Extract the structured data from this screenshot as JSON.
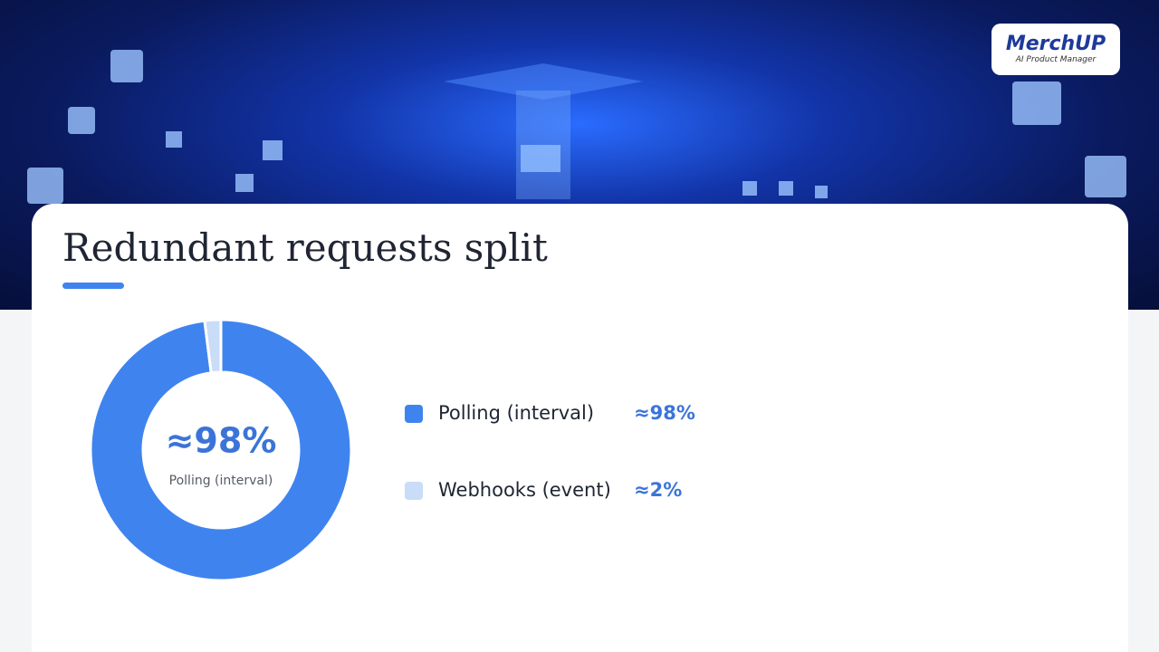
{
  "logo": {
    "name": "MerchUP",
    "tagline": "AI Product Manager"
  },
  "chart_data": {
    "type": "pie",
    "donut": true,
    "title": "Redundant requests split",
    "categories": [
      "Polling (interval)",
      "Webhooks (event)"
    ],
    "values": [
      98,
      2
    ],
    "value_labels": [
      "≈98%",
      "≈2%"
    ],
    "colors": [
      "#3f84ee",
      "#c9dcf8"
    ]
  }
}
